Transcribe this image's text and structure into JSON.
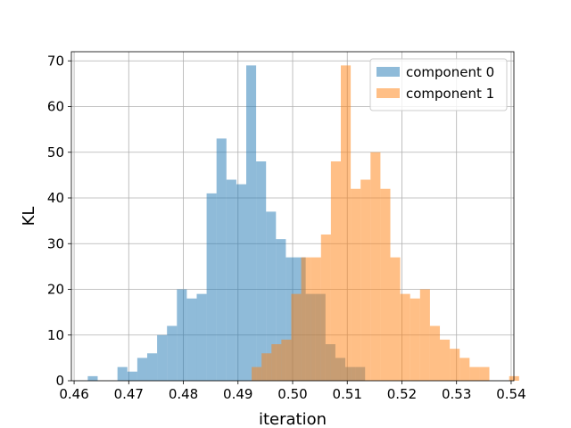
{
  "chart_data": {
    "type": "histogram",
    "xlabel": "iteration",
    "ylabel": "KL",
    "xlim": [
      0.4595,
      0.5405
    ],
    "ylim": [
      0,
      72
    ],
    "xticks": [
      0.46,
      0.47,
      0.48,
      0.49,
      0.5,
      0.51,
      0.52,
      0.53,
      0.54
    ],
    "yticks": [
      0,
      10,
      20,
      30,
      40,
      50,
      60,
      70
    ],
    "grid": true,
    "legend_position": "top-right",
    "series": [
      {
        "name": "component 0",
        "color": "#1f77b4",
        "opacity": 0.5,
        "bin_start": 0.4625,
        "bin_width": 0.001813,
        "counts": [
          1,
          0,
          0,
          3,
          2,
          5,
          6,
          10,
          12,
          20,
          18,
          19,
          41,
          53,
          44,
          43,
          69,
          48,
          37,
          31,
          27,
          27,
          19,
          19,
          8,
          5,
          3,
          3
        ]
      },
      {
        "name": "component 1",
        "color": "#ff7f0e",
        "opacity": 0.5,
        "bin_start": 0.4925,
        "bin_width": 0.001813,
        "counts": [
          3,
          6,
          8,
          9,
          19,
          27,
          27,
          32,
          48,
          69,
          42,
          44,
          50,
          42,
          27,
          19,
          18,
          20,
          12,
          9,
          7,
          5,
          3,
          3,
          0,
          0,
          1
        ]
      }
    ]
  }
}
